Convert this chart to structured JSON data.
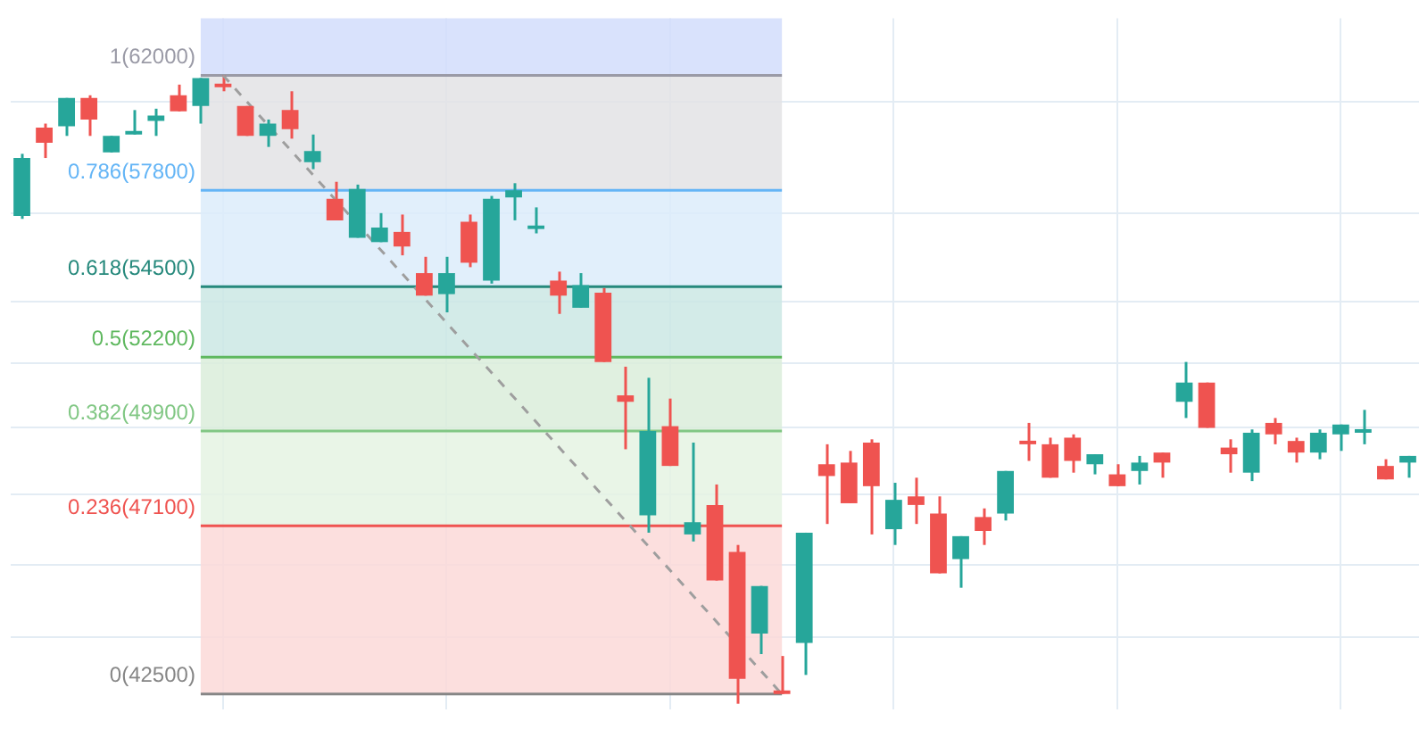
{
  "chart_data": {
    "type": "candlestick",
    "categories": [
      null,
      null,
      null,
      null,
      null,
      null,
      null,
      null,
      null,
      null,
      null,
      null,
      null,
      null,
      null,
      null,
      null,
      null,
      null,
      null,
      null,
      null,
      null,
      null,
      null,
      null,
      null,
      null,
      null,
      null,
      null,
      null,
      null,
      null,
      null,
      null,
      null,
      null,
      null,
      null,
      null,
      null,
      null,
      null,
      null,
      null,
      null,
      null,
      null,
      null,
      null,
      null,
      null,
      null,
      null,
      null,
      null,
      null,
      null,
      null,
      null,
      null,
      null
    ],
    "log": "y",
    "ylim": [
      42100,
      64200
    ],
    "yticks": [
      {
        "value": 44000,
        "label": null
      },
      {
        "value": 46000,
        "label": null
      },
      {
        "value": 48000,
        "label": null
      },
      {
        "value": 50000,
        "label": null
      },
      {
        "value": 52000,
        "label": null
      },
      {
        "value": 54000,
        "label": null
      },
      {
        "value": 57000,
        "label": null
      },
      {
        "value": 61000,
        "label": null
      }
    ],
    "grid": true,
    "legend": false,
    "bands": [
      {
        "axis": "y",
        "from": 62000,
        "to": 64200,
        "color": "#d2ddfb"
      },
      {
        "axis": "y",
        "from": 57800,
        "to": 62000,
        "color": "#e3e3e5"
      },
      {
        "axis": "y",
        "from": 54500,
        "to": 57800,
        "color": "#dcecfa"
      },
      {
        "axis": "y",
        "from": 52200,
        "to": 54500,
        "color": "#cbe8e4"
      },
      {
        "axis": "y",
        "from": 49900,
        "to": 52200,
        "color": "#daeddb"
      },
      {
        "axis": "y",
        "from": 47100,
        "to": 49900,
        "color": "#e5f3e3"
      },
      {
        "axis": "y",
        "from": 42500,
        "to": 47100,
        "color": "#fbd9d8"
      }
    ],
    "ref_lines": [
      {
        "axis": "y",
        "value": 62000,
        "label": "1(62000)",
        "color": "#9a9aa6"
      },
      {
        "axis": "y",
        "value": 57800,
        "label": "0.786(57800)",
        "color": "#64b5f6"
      },
      {
        "axis": "y",
        "value": 54500,
        "label": "0.618(54500)",
        "color": "#26897c"
      },
      {
        "axis": "y",
        "value": 52200,
        "label": "0.5(52200)",
        "color": "#5fb85f"
      },
      {
        "axis": "y",
        "value": 49900,
        "label": "0.382(49900)",
        "color": "#81c784"
      },
      {
        "axis": "y",
        "value": 47100,
        "label": "0.236(47100)",
        "color": "#ef5350"
      },
      {
        "axis": "y",
        "value": 42500,
        "label": "0(42500)",
        "color": "#868686"
      }
    ],
    "series": [
      {
        "type": "candlestick",
        "ohlc": [
          [
            56900,
            59100,
            56800,
            58950
          ],
          [
            60050,
            60200,
            58950,
            59500
          ],
          [
            60100,
            61150,
            59750,
            61150
          ],
          [
            61150,
            61250,
            59750,
            60350
          ],
          [
            59150,
            59750,
            59150,
            59750
          ],
          [
            59800,
            60700,
            59800,
            59900
          ],
          [
            60300,
            60750,
            59750,
            60500
          ],
          [
            61250,
            61650,
            60650,
            60650
          ],
          [
            60850,
            61900,
            60200,
            61900
          ],
          [
            61600,
            62000,
            61400,
            61550
          ],
          [
            60850,
            60850,
            59750,
            59750
          ],
          [
            59750,
            60350,
            59350,
            60200
          ],
          [
            60700,
            61400,
            59650,
            60000
          ],
          [
            58800,
            59800,
            58550,
            59200
          ],
          [
            57500,
            58100,
            56750,
            56750
          ],
          [
            56150,
            58000,
            56150,
            57850
          ],
          [
            56000,
            57000,
            56000,
            56500
          ],
          [
            56350,
            56950,
            55550,
            55850
          ],
          [
            54950,
            55500,
            54200,
            54200
          ],
          [
            54250,
            55500,
            53650,
            54950
          ],
          [
            56700,
            56950,
            55150,
            55300
          ],
          [
            54700,
            57600,
            54600,
            57500
          ],
          [
            57550,
            58050,
            56750,
            57800
          ],
          [
            56450,
            57200,
            56300,
            56550
          ],
          [
            54700,
            55000,
            53600,
            54200
          ],
          [
            53800,
            54950,
            53800,
            54550
          ],
          [
            54300,
            54450,
            52050,
            52050
          ],
          [
            51000,
            51900,
            49350,
            50800
          ],
          [
            47400,
            51550,
            46900,
            49900
          ],
          [
            50050,
            50900,
            48850,
            48850
          ],
          [
            46850,
            49550,
            46650,
            47200
          ],
          [
            47700,
            48300,
            45550,
            45550
          ],
          [
            46350,
            46550,
            42250,
            42900
          ],
          [
            44100,
            45400,
            43550,
            45400
          ],
          [
            42550,
            43500,
            42500,
            42500
          ],
          [
            43850,
            46900,
            43000,
            46900
          ],
          [
            48900,
            49500,
            47150,
            48550
          ],
          [
            48950,
            49300,
            47750,
            47750
          ],
          [
            49550,
            49650,
            46850,
            48250
          ],
          [
            47000,
            48350,
            46550,
            47850
          ],
          [
            47950,
            48500,
            47150,
            47700
          ],
          [
            47450,
            47950,
            45750,
            45750
          ],
          [
            46150,
            46800,
            45350,
            46800
          ],
          [
            47350,
            47600,
            46550,
            46950
          ],
          [
            47450,
            48700,
            47250,
            48700
          ],
          [
            49600,
            50150,
            49000,
            49500
          ],
          [
            49500,
            49700,
            48500,
            48500
          ],
          [
            49700,
            49800,
            48650,
            49000
          ],
          [
            48900,
            49200,
            48600,
            49200
          ],
          [
            48600,
            48900,
            48250,
            48250
          ],
          [
            48700,
            49150,
            48300,
            48950
          ],
          [
            49250,
            49250,
            48500,
            48950
          ],
          [
            50800,
            52050,
            50300,
            51400
          ],
          [
            51400,
            51400,
            50000,
            50000
          ],
          [
            49400,
            49650,
            48650,
            49200
          ],
          [
            48650,
            49950,
            48400,
            49850
          ],
          [
            50150,
            50300,
            49500,
            49800
          ],
          [
            49600,
            49700,
            48950,
            49250
          ],
          [
            49250,
            49950,
            49050,
            49850
          ],
          [
            49800,
            50100,
            49300,
            50100
          ],
          [
            49850,
            50550,
            49500,
            49950
          ],
          [
            48850,
            49050,
            48450,
            48450
          ],
          [
            48950,
            49150,
            48500,
            49150
          ]
        ],
        "colors": [
          "#26a69a",
          "#ef5350",
          "#26a69a",
          "#ef5350",
          "#26a69a",
          "#26a69a",
          "#26a69a",
          "#ef5350",
          "#26a69a",
          "#ef5350",
          "#ef5350",
          "#26a69a",
          "#ef5350",
          "#26a69a",
          "#ef5350",
          "#26a69a",
          "#26a69a",
          "#ef5350",
          "#ef5350",
          "#26a69a",
          "#ef5350",
          "#26a69a",
          "#26a69a",
          "#26a69a",
          "#ef5350",
          "#26a69a",
          "#ef5350",
          "#ef5350",
          "#26a69a",
          "#ef5350",
          "#26a69a",
          "#ef5350",
          "#ef5350",
          "#26a69a",
          "#ef5350",
          "#26a69a",
          "#ef5350",
          "#ef5350",
          "#ef5350",
          "#26a69a",
          "#ef5350",
          "#ef5350",
          "#26a69a",
          "#ef5350",
          "#26a69a",
          "#ef5350",
          "#ef5350",
          "#ef5350",
          "#26a69a",
          "#ef5350",
          "#26a69a",
          "#ef5350",
          "#26a69a",
          "#ef5350",
          "#ef5350",
          "#26a69a",
          "#ef5350",
          "#ef5350",
          "#26a69a",
          "#26a69a",
          "#26a69a",
          "#ef5350",
          "#26a69a"
        ]
      },
      {
        "type": "line",
        "color": "#9e9e9e",
        "line_style": "dashed",
        "marker": "none",
        "values": [
          null,
          null,
          null,
          null,
          null,
          null,
          null,
          null,
          null,
          62000,
          null,
          null,
          null,
          null,
          null,
          null,
          null,
          null,
          null,
          null,
          null,
          null,
          null,
          null,
          null,
          null,
          null,
          null,
          null,
          null,
          null,
          null,
          null,
          null,
          42500,
          null,
          null,
          null,
          null,
          null,
          null,
          null,
          null,
          null,
          null,
          null,
          null,
          null,
          null,
          null,
          null,
          null,
          null,
          null,
          null,
          null,
          null,
          null,
          null,
          null,
          null,
          null,
          null
        ]
      }
    ]
  }
}
